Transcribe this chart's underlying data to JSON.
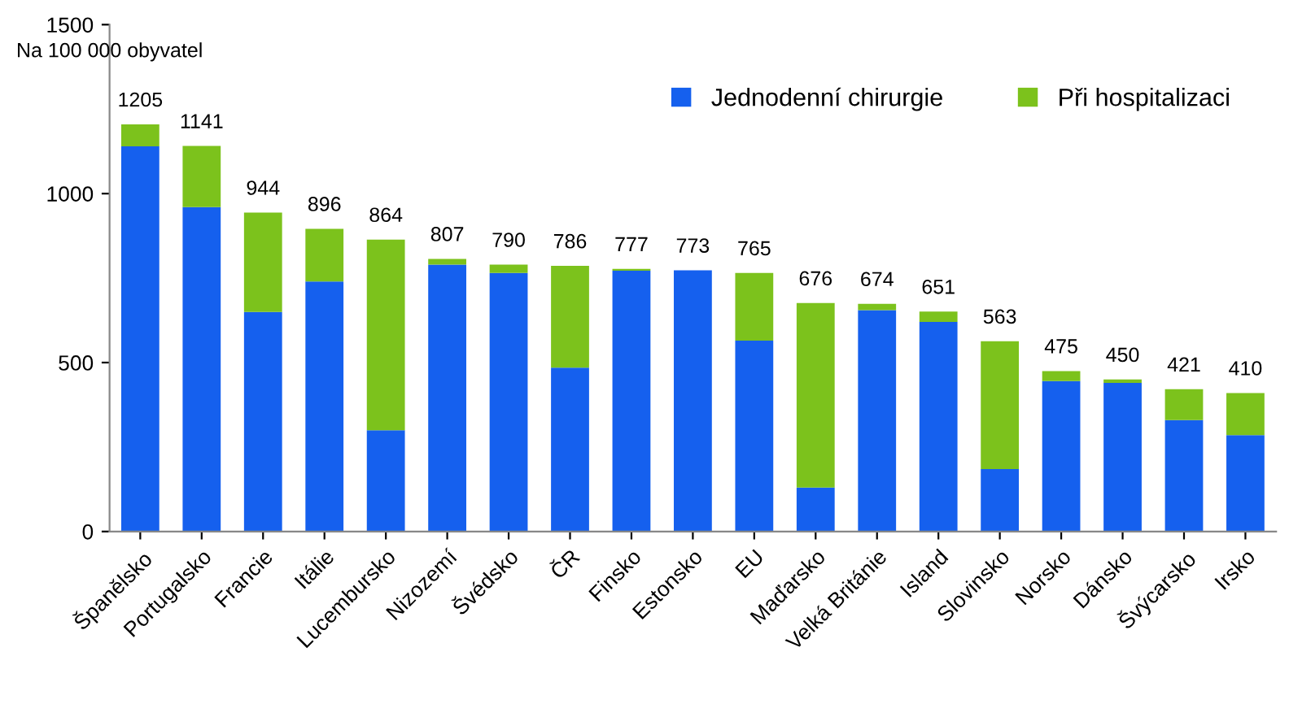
{
  "chart_data": {
    "type": "bar",
    "stacked": true,
    "ylabel": "Na 100 000 obyvatel",
    "categories": [
      "Španělsko",
      "Portugalsko",
      "Francie",
      "Itálie",
      "Lucembursko",
      "Nizozemí",
      "Švédsko",
      "ČR",
      "Finsko",
      "Estonsko",
      "EU",
      "Maďarsko",
      "Velká Británie",
      "Island",
      "Slovinsko",
      "Norsko",
      "Dánsko",
      "Švýcarsko",
      "Irsko"
    ],
    "series": [
      {
        "name": "Jednodenní chirurgie",
        "color": "#1560ee",
        "values": [
          1140,
          960,
          650,
          740,
          300,
          790,
          765,
          485,
          772,
          773,
          565,
          130,
          655,
          620,
          185,
          445,
          440,
          330,
          285
        ]
      },
      {
        "name": "Při hospitalizaci",
        "color": "#7cc21c",
        "values": [
          65,
          181,
          294,
          156,
          564,
          17,
          25,
          301,
          5,
          0,
          200,
          546,
          19,
          31,
          378,
          30,
          10,
          91,
          125
        ]
      }
    ],
    "totals": [
      "1205",
      "1141",
      "944",
      "896",
      "864",
      "807",
      "790",
      "786",
      "777",
      "773",
      "765",
      "676",
      "674",
      "651",
      "563",
      "475",
      "450",
      "421",
      "410"
    ],
    "ylim": [
      0,
      1500
    ],
    "yticks": [
      0,
      500,
      1000,
      1500
    ],
    "grid": false,
    "legend": "top right"
  }
}
